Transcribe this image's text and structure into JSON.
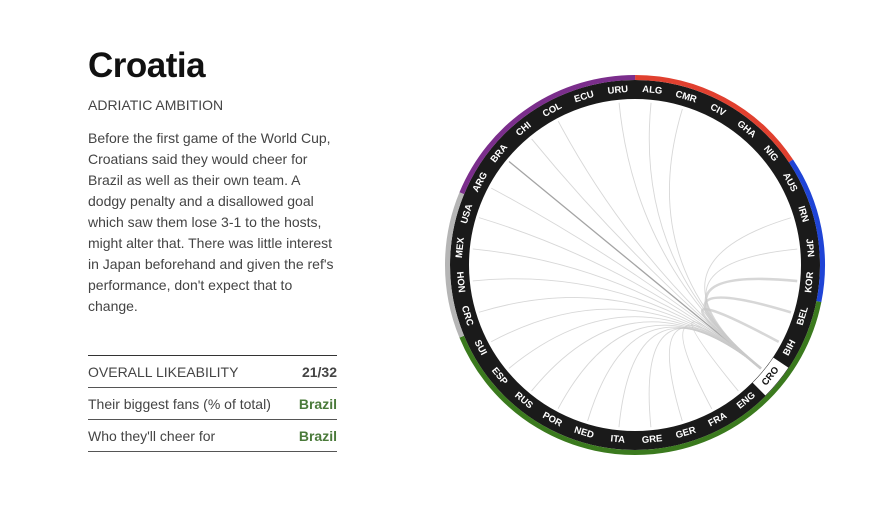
{
  "country": {
    "name": "Croatia",
    "tagline": "ADRIATIC AMBITION",
    "description": "Before the first game of the World Cup, Croatians said they would cheer for Brazil as well as their own team. A dodgy penalty and a disallowed goal which saw them lose 3-1 to the hosts, might alter that. There was little interest in Japan beforehand and given the ref's performance, don't expect that to change."
  },
  "stats": [
    {
      "label": "OVERALL LIKEABILITY",
      "value": "21/32"
    },
    {
      "label": "Their biggest fans (% of total)",
      "value": "Brazil"
    },
    {
      "label": "Who they'll cheer for",
      "value": "Brazil"
    }
  ],
  "chart_data": {
    "type": "chord",
    "selected": "CRO",
    "teams": [
      "URU",
      "ALG",
      "CMR",
      "CIV",
      "GHA",
      "NIG",
      "AUS",
      "IRN",
      "JPN",
      "KOR",
      "BEL",
      "BIH",
      "CRO",
      "ENG",
      "FRA",
      "GER",
      "GRE",
      "ITA",
      "NED",
      "POR",
      "RUS",
      "ESP",
      "SUI",
      "CRC",
      "HON",
      "MEX",
      "USA",
      "ARG",
      "BRA",
      "CHI",
      "COL",
      "ECU"
    ],
    "groups": [
      {
        "teams": [
          "ALG",
          "CMR",
          "CIV",
          "GHA",
          "NIG"
        ],
        "color": "#e0402f"
      },
      {
        "teams": [
          "AUS",
          "IRN",
          "JPN",
          "KOR"
        ],
        "color": "#1f44d6"
      },
      {
        "teams": [
          "BEL",
          "BIH",
          "CRO",
          "ENG",
          "FRA",
          "GER",
          "GRE",
          "ITA",
          "NED",
          "POR",
          "RUS",
          "ESP",
          "SUI"
        ],
        "color": "#3b7a1e"
      },
      {
        "teams": [
          "CRC",
          "HON",
          "MEX",
          "USA"
        ],
        "color": "#b5b5b5"
      },
      {
        "teams": [
          "ARG",
          "BRA",
          "CHI",
          "COL",
          "ECU",
          "URU"
        ],
        "color": "#7b2e8c"
      }
    ],
    "chords": [
      {
        "to": "BRA",
        "weight": 3
      },
      {
        "to": "ARG",
        "weight": 1
      },
      {
        "to": "CHI",
        "weight": 1
      },
      {
        "to": "COL",
        "weight": 1
      },
      {
        "to": "USA",
        "weight": 1
      },
      {
        "to": "MEX",
        "weight": 1
      },
      {
        "to": "HON",
        "weight": 1
      },
      {
        "to": "CRC",
        "weight": 1
      },
      {
        "to": "SUI",
        "weight": 1
      },
      {
        "to": "ESP",
        "weight": 1
      },
      {
        "to": "RUS",
        "weight": 1
      },
      {
        "to": "POR",
        "weight": 1
      },
      {
        "to": "NED",
        "weight": 1
      },
      {
        "to": "ITA",
        "weight": 1
      },
      {
        "to": "GRE",
        "weight": 1
      },
      {
        "to": "GER",
        "weight": 1
      },
      {
        "to": "FRA",
        "weight": 1
      },
      {
        "to": "ENG",
        "weight": 1
      },
      {
        "to": "BIH",
        "weight": 2
      },
      {
        "to": "BEL",
        "weight": 2
      },
      {
        "to": "KOR",
        "weight": 2
      },
      {
        "to": "JPN",
        "weight": 1
      },
      {
        "to": "IRN",
        "weight": 1
      },
      {
        "to": "ALG",
        "weight": 1
      },
      {
        "to": "CMR",
        "weight": 1
      },
      {
        "to": "URU",
        "weight": 1
      }
    ]
  }
}
